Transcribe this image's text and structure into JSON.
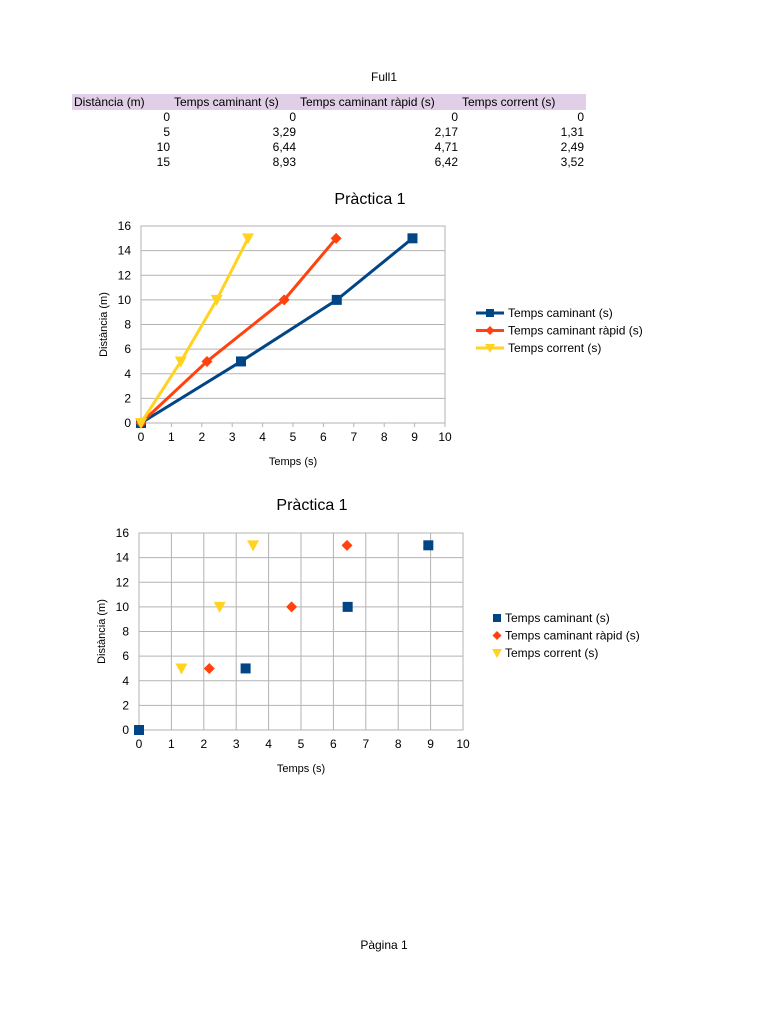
{
  "sheet": {
    "title": "Full1",
    "footer": "Pàgina 1"
  },
  "table": {
    "headers": [
      "Distància (m)",
      "Temps caminant (s)",
      "Temps caminant ràpid (s)",
      "Temps corrent (s)"
    ],
    "rows": [
      [
        "0",
        "0",
        "0",
        "0"
      ],
      [
        "5",
        "3,29",
        "2,17",
        "1,31"
      ],
      [
        "10",
        "6,44",
        "4,71",
        "2,49"
      ],
      [
        "15",
        "8,93",
        "6,42",
        "3,52"
      ]
    ]
  },
  "chart_data": [
    {
      "type": "line",
      "title": "Pràctica 1",
      "xlabel": "Temps (s)",
      "ylabel": "Distància (m)",
      "xlim": [
        0,
        10
      ],
      "ylim": [
        0,
        16
      ],
      "xticks": [
        "0",
        "1",
        "2",
        "3",
        "4",
        "5",
        "6",
        "7",
        "8",
        "9",
        "10"
      ],
      "yticks": [
        "0",
        "2",
        "4",
        "6",
        "8",
        "10",
        "12",
        "14",
        "16"
      ],
      "grid": "horizontal",
      "legend": "right",
      "series": [
        {
          "name": "Temps caminant (s)",
          "color": "#004586",
          "marker": "square",
          "x": [
            0,
            3.29,
            6.44,
            8.93
          ],
          "y": [
            0,
            5,
            10,
            15
          ]
        },
        {
          "name": "Temps caminant ràpid (s)",
          "color": "#ff420e",
          "marker": "diamond",
          "x": [
            0,
            2.17,
            4.71,
            6.42
          ],
          "y": [
            0,
            5,
            10,
            15
          ]
        },
        {
          "name": "Temps corrent (s)",
          "color": "#ffd320",
          "marker": "triangle-down",
          "x": [
            0,
            1.31,
            2.49,
            3.52
          ],
          "y": [
            0,
            5,
            10,
            15
          ]
        }
      ]
    },
    {
      "type": "scatter",
      "title": "Pràctica 1",
      "xlabel": "Temps (s)",
      "ylabel": "Distància (m)",
      "xlim": [
        0,
        10
      ],
      "ylim": [
        0,
        16
      ],
      "xticks": [
        "0",
        "1",
        "2",
        "3",
        "4",
        "5",
        "6",
        "7",
        "8",
        "9",
        "10"
      ],
      "yticks": [
        "0",
        "2",
        "4",
        "6",
        "8",
        "10",
        "12",
        "14",
        "16"
      ],
      "grid": "both",
      "legend": "right",
      "series": [
        {
          "name": "Temps caminant (s)",
          "color": "#004586",
          "marker": "square",
          "x": [
            0,
            3.29,
            6.44,
            8.93
          ],
          "y": [
            0,
            5,
            10,
            15
          ]
        },
        {
          "name": "Temps caminant ràpid (s)",
          "color": "#ff420e",
          "marker": "diamond",
          "x": [
            2.17,
            4.71,
            6.42
          ],
          "y": [
            5,
            10,
            15
          ]
        },
        {
          "name": "Temps corrent (s)",
          "color": "#ffd320",
          "marker": "triangle-down",
          "x": [
            1.31,
            2.49,
            3.52
          ],
          "y": [
            5,
            10,
            15
          ]
        }
      ]
    }
  ]
}
